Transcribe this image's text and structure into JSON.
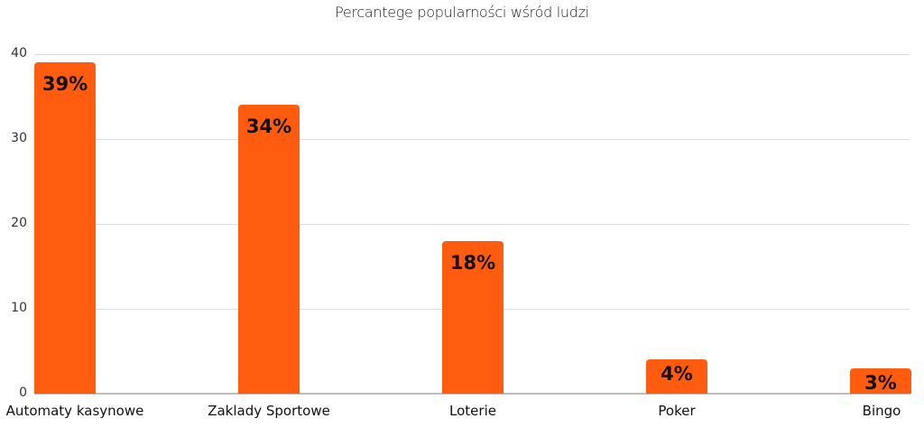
{
  "chart_data": {
    "type": "bar",
    "title": "Percantege popularności wśród ludzi",
    "categories": [
      "Automaty kasynowe",
      "Zaklady Sportowe",
      "Loterie",
      "Poker",
      "Bingo"
    ],
    "values": [
      39,
      34,
      18,
      4,
      3
    ],
    "data_labels": [
      "39%",
      "34%",
      "18%",
      "4%",
      "3%"
    ],
    "xlabel": "",
    "ylabel": "",
    "ylim": [
      0,
      40
    ],
    "yticks": [
      "0",
      "10",
      "20",
      "30",
      "40"
    ],
    "grid": true,
    "legend": "none",
    "bar_color": "#ff5c0f"
  }
}
